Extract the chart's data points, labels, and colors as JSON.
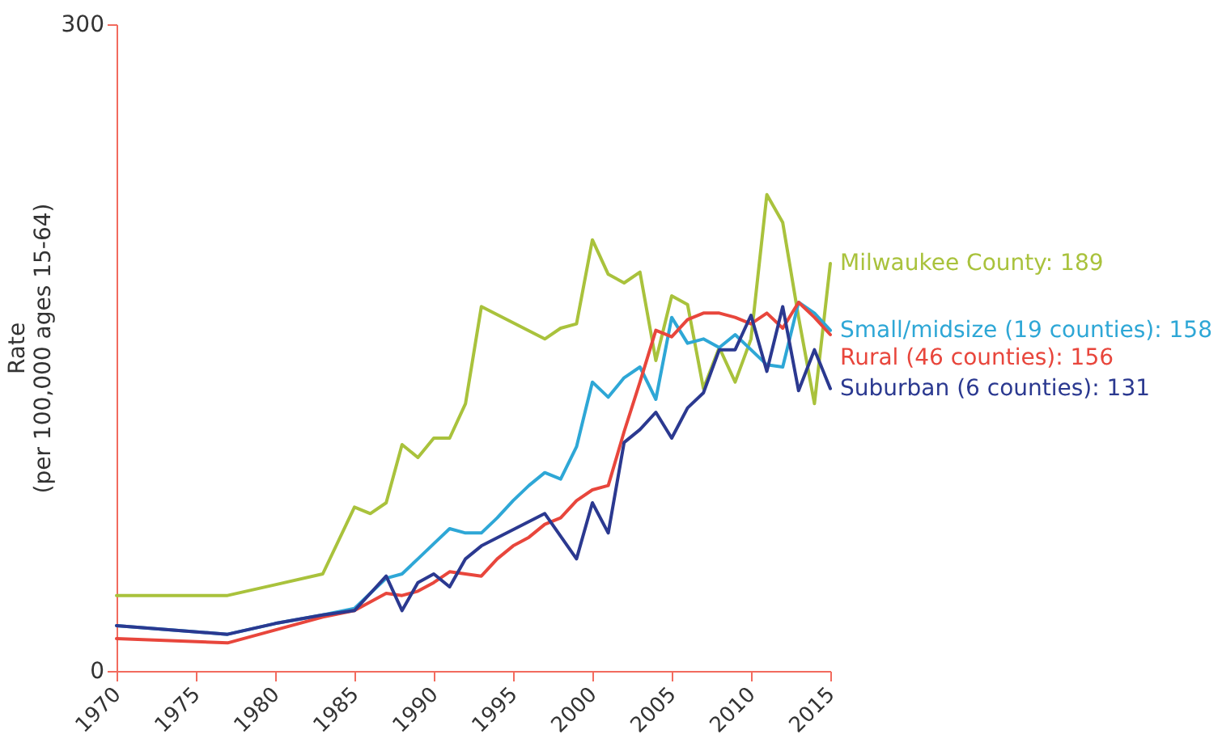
{
  "chart_data": {
    "type": "line",
    "ylabel": "Rate\n(per 100,000 ages 15-64)",
    "xlim": [
      1970,
      2015
    ],
    "xticks": [
      1970,
      1975,
      1980,
      1985,
      1990,
      1995,
      2000,
      2005,
      2010,
      2015
    ],
    "ylim": [
      0,
      300
    ],
    "yticks": [
      0,
      300
    ],
    "series": [
      {
        "color": "#a9c23c",
        "x": [
          1970,
          1977,
          1980,
          1983,
          1985,
          1986,
          1987,
          1988,
          1989,
          1990,
          1991,
          1992,
          1993,
          1997,
          1998,
          1999,
          2000,
          2001,
          2002,
          2003,
          2004,
          2005,
          2006,
          2007,
          2008,
          2009,
          2010,
          2011,
          2012,
          2013,
          2014,
          2015
        ],
        "values": [
          35,
          35,
          40,
          45,
          76,
          73,
          78,
          105,
          99,
          108,
          108,
          124,
          169,
          154,
          159,
          161,
          200,
          184,
          180,
          185,
          144,
          174,
          170,
          131,
          150,
          134,
          154,
          221,
          208,
          164,
          124,
          189
        ]
      },
      {
        "color": "#2ea7d6",
        "x": [
          1970,
          1977,
          1980,
          1983,
          1985,
          1986,
          1987,
          1988,
          1989,
          1990,
          1991,
          1992,
          1993,
          1994,
          1995,
          1996,
          1997,
          1998,
          1999,
          2000,
          2001,
          2002,
          2003,
          2004,
          2005,
          2006,
          2007,
          2008,
          2009,
          2010,
          2011,
          2012,
          2013,
          2014,
          2015
        ],
        "values": [
          21,
          17,
          22,
          26,
          29,
          36,
          43,
          45,
          52,
          59,
          66,
          64,
          64,
          71,
          79,
          86,
          92,
          89,
          104,
          134,
          127,
          136,
          141,
          126,
          164,
          152,
          154,
          150,
          156,
          149,
          142,
          141,
          171,
          166,
          158
        ]
      },
      {
        "color": "#e8463c",
        "x": [
          1970,
          1977,
          1980,
          1983,
          1985,
          1987,
          1988,
          1989,
          1990,
          1991,
          1992,
          1993,
          1994,
          1995,
          1996,
          1997,
          1998,
          1999,
          2000,
          2001,
          2002,
          2003,
          2004,
          2005,
          2006,
          2007,
          2008,
          2009,
          2010,
          2011,
          2012,
          2013,
          2014,
          2015
        ],
        "values": [
          15,
          13,
          19,
          25,
          28,
          36,
          35,
          37,
          41,
          46,
          45,
          44,
          52,
          58,
          62,
          68,
          71,
          79,
          84,
          86,
          111,
          134,
          158,
          155,
          163,
          166,
          166,
          164,
          161,
          166,
          159,
          171,
          164,
          156
        ]
      },
      {
        "color": "#2b3990",
        "x": [
          1970,
          1977,
          1980,
          1983,
          1985,
          1986,
          1987,
          1988,
          1989,
          1990,
          1991,
          1992,
          1993,
          1997,
          1999,
          2000,
          2001,
          2002,
          2003,
          2004,
          2005,
          2006,
          2007,
          2008,
          2009,
          2010,
          2011,
          2012,
          2013,
          2014,
          2015
        ],
        "values": [
          21,
          17,
          22,
          26,
          28,
          36,
          44,
          28,
          41,
          45,
          39,
          52,
          58,
          73,
          52,
          78,
          64,
          106,
          112,
          120,
          108,
          122,
          129,
          149,
          149,
          165,
          139,
          169,
          130,
          149,
          131
        ]
      }
    ],
    "annotations": [
      "Milwaukee County: 189",
      "Small/midsize (19 counties): 158",
      "Rural (46 counties): 156",
      "Suburban (6 counties): 131"
    ]
  }
}
